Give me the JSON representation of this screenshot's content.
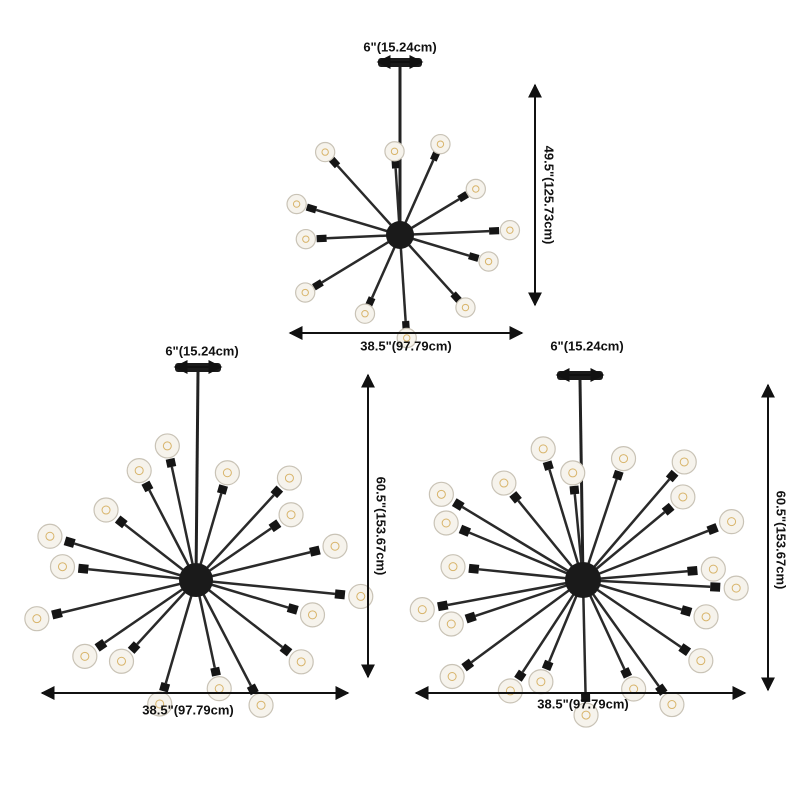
{
  "chandeliers": [
    {
      "canopy_width": "6\"(15.24cm)",
      "height": "49.5\"(125.73cm)",
      "width": "38.5\"(97.79cm)"
    },
    {
      "canopy_width": "6\"(15.24cm)",
      "height": "60.5\"(153.67cm)",
      "width": "38.5\"(97.79cm)"
    },
    {
      "canopy_width": "6\"(15.24cm)",
      "height": "60.5\"(153.67cm)",
      "width": "38.5\"(97.79cm)"
    }
  ]
}
